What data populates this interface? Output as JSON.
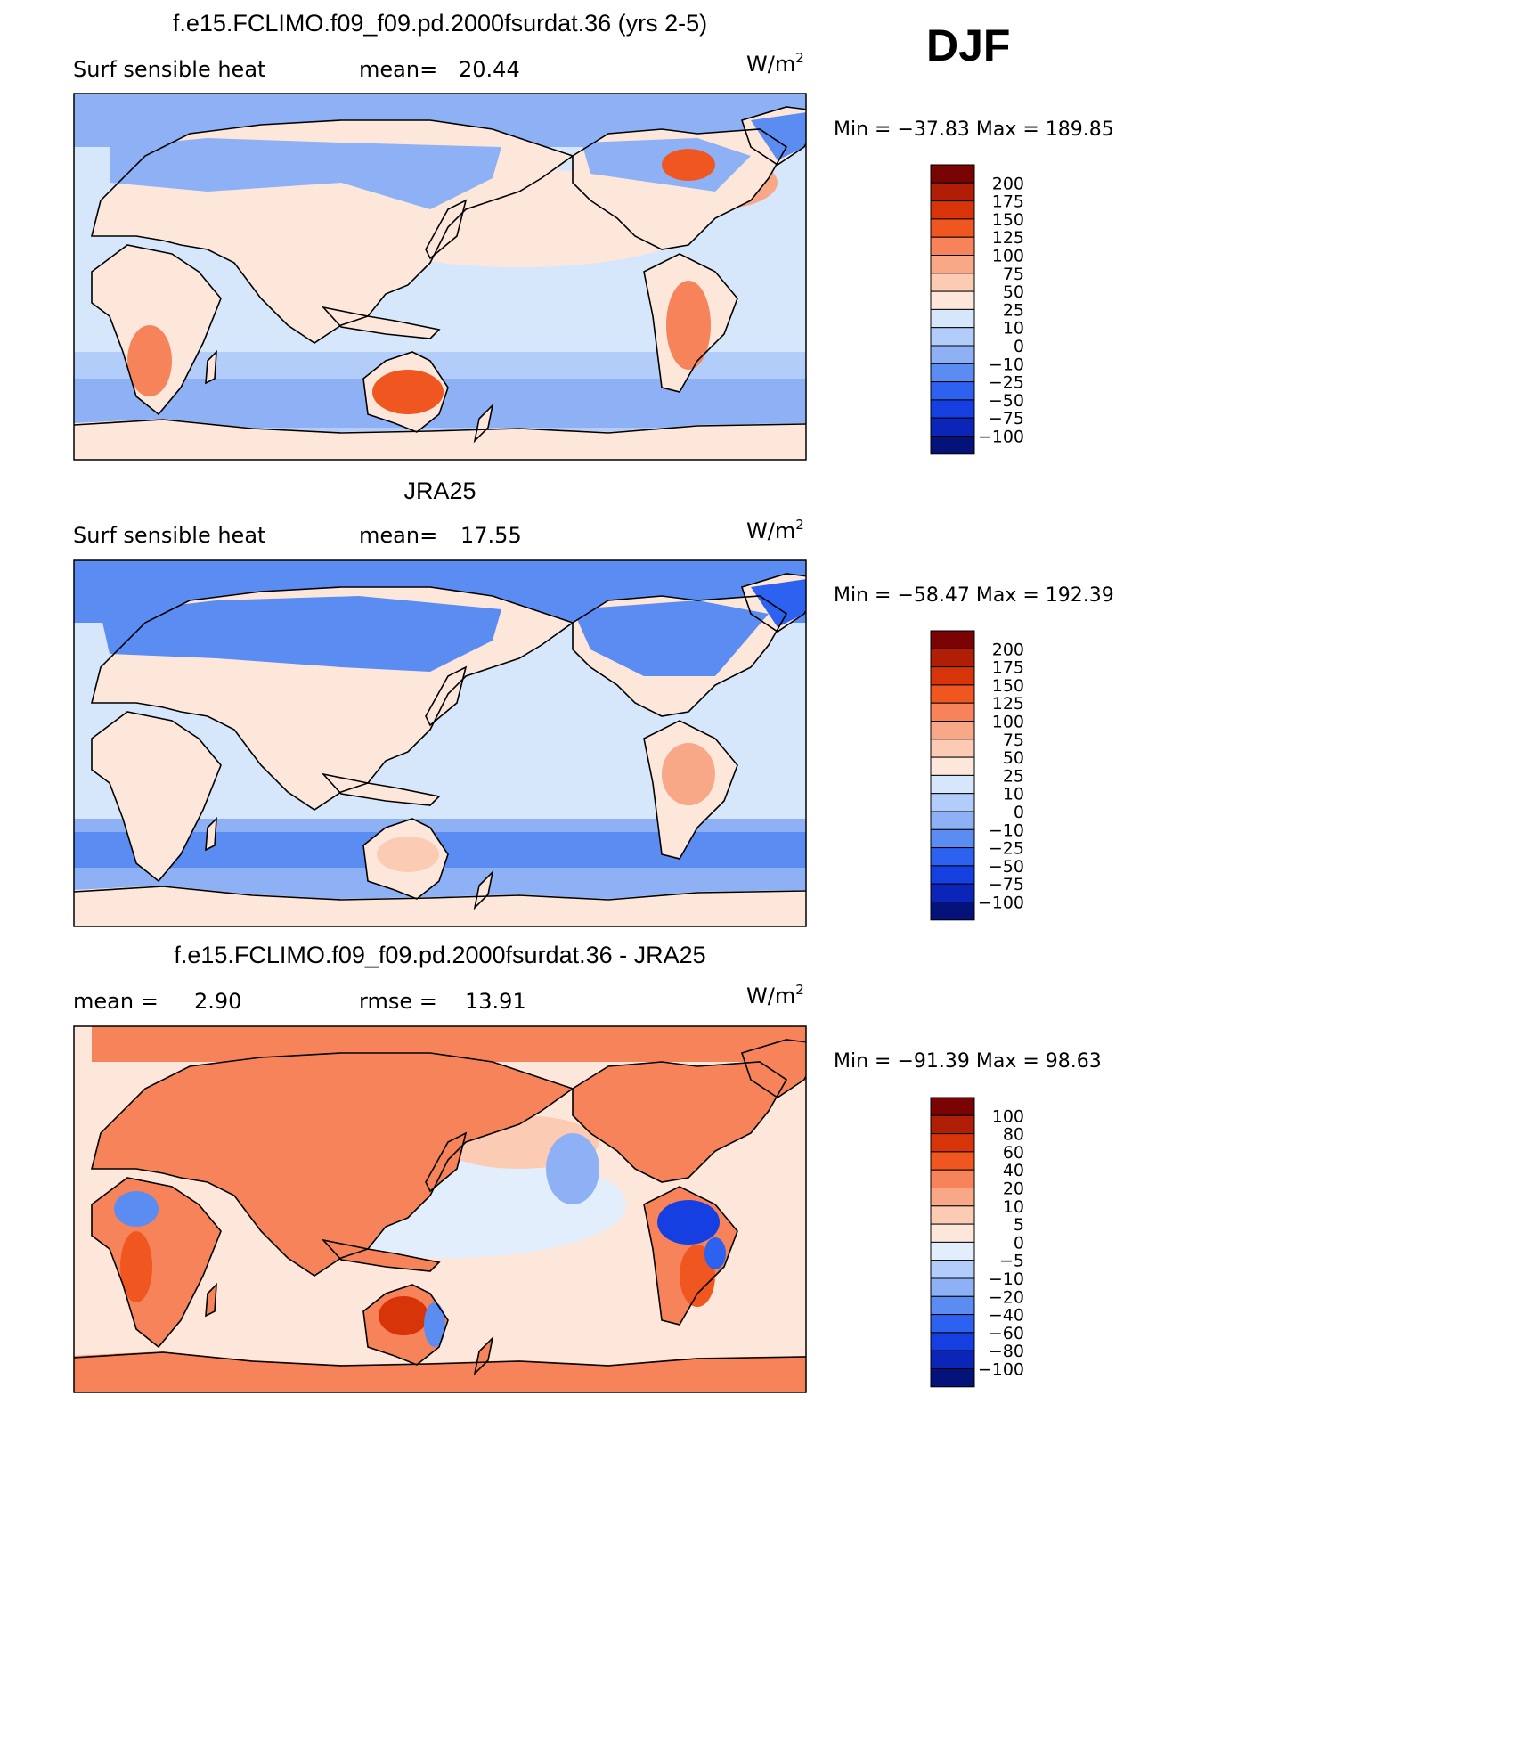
{
  "season": "DJF",
  "chart_data": [
    {
      "type": "heatmap",
      "title": "f.e15.FCLIMO.f09_f09.pd.2000fsurdat.36 (yrs 2-5)",
      "left_text": "Surf  sensible  heat",
      "stat_label": "mean=",
      "stat_value": "20.44",
      "units": "W/m",
      "units_sup": "2",
      "minmax_text": "Min  =  −37.83  Max  =  189.85",
      "min": -37.83,
      "max": 189.85,
      "levels": [
        "200",
        "175",
        "150",
        "125",
        "100",
        "75",
        "50",
        "25",
        "10",
        "0",
        "−10",
        "−25",
        "−50",
        "−75",
        "−100"
      ],
      "colors": [
        "#7a0403",
        "#b01e05",
        "#d8340a",
        "#f0561f",
        "#f7835a",
        "#f9a887",
        "#fbcbb4",
        "#fde7db",
        "#d6e7fb",
        "#b3cdfa",
        "#8eb1f6",
        "#5a8cf2",
        "#2d62f0",
        "#153fe0",
        "#0a25b8",
        "#05127a"
      ]
    },
    {
      "type": "heatmap",
      "title": "JRA25",
      "left_text": "Surf  sensible  heat",
      "stat_label": "mean=",
      "stat_value": "17.55",
      "units": "W/m",
      "units_sup": "2",
      "minmax_text": "Min  =  −58.47  Max  =  192.39",
      "min": -58.47,
      "max": 192.39,
      "levels": [
        "200",
        "175",
        "150",
        "125",
        "100",
        "75",
        "50",
        "25",
        "10",
        "0",
        "−10",
        "−25",
        "−50",
        "−75",
        "−100"
      ],
      "colors": [
        "#7a0403",
        "#b01e05",
        "#d8340a",
        "#f0561f",
        "#f7835a",
        "#f9a887",
        "#fbcbb4",
        "#fde7db",
        "#d6e7fb",
        "#b3cdfa",
        "#8eb1f6",
        "#5a8cf2",
        "#2d62f0",
        "#153fe0",
        "#0a25b8",
        "#05127a"
      ]
    },
    {
      "type": "heatmap",
      "title": "f.e15.FCLIMO.f09_f09.pd.2000fsurdat.36 - JRA25",
      "left_text": "mean  =",
      "left_value": "2.90",
      "stat_label": "rmse  =",
      "stat_value": "13.91",
      "units": "W/m",
      "units_sup": "2",
      "minmax_text": "Min  =  −91.39  Max  =   98.63",
      "min": -91.39,
      "max": 98.63,
      "levels": [
        "100",
        "80",
        "60",
        "40",
        "20",
        "10",
        "5",
        "0",
        "−5",
        "−10",
        "−20",
        "−40",
        "−60",
        "−80",
        "−100"
      ],
      "colors": [
        "#7a0403",
        "#b01e05",
        "#d8340a",
        "#f0561f",
        "#f7835a",
        "#f9a887",
        "#fbcbb4",
        "#fde7db",
        "#e3eefc",
        "#b3cdfa",
        "#8eb1f6",
        "#5a8cf2",
        "#2d62f0",
        "#153fe0",
        "#0a25b8",
        "#05127a"
      ]
    }
  ]
}
